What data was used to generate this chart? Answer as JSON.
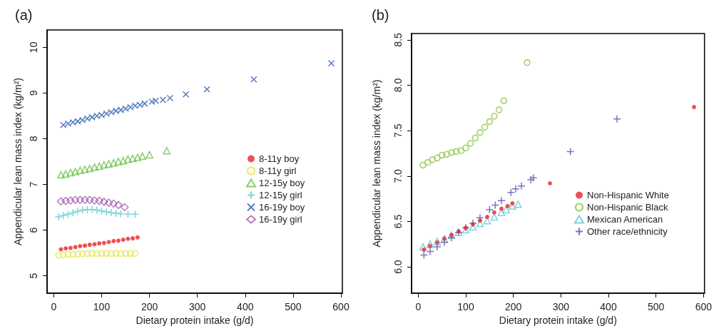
{
  "chart_data": [
    {
      "type": "scatter",
      "title": "(a)",
      "xlabel": "Dietary protein intake (g/d)",
      "ylabel": "Appendicular lean mass index (kg/m²)",
      "xlim": [
        -14,
        603
      ],
      "ylim": [
        4.62,
        10.38
      ],
      "xticks": [
        0,
        100,
        200,
        300,
        400,
        500,
        600
      ],
      "yticks": [
        5,
        6,
        7,
        8,
        9,
        10
      ],
      "grid": false,
      "legend": "bottom right",
      "series": [
        {
          "name": "8-11y boy",
          "color": "#e8262a",
          "marker": "circle",
          "x": [
            15,
            25,
            35,
            45,
            55,
            65,
            75,
            85,
            95,
            105,
            115,
            125,
            135,
            145,
            155,
            165,
            175
          ],
          "values": [
            5.58,
            5.6,
            5.61,
            5.63,
            5.65,
            5.66,
            5.68,
            5.69,
            5.71,
            5.72,
            5.74,
            5.76,
            5.77,
            5.79,
            5.81,
            5.82,
            5.84
          ]
        },
        {
          "name": "8-11y girl",
          "color": "#e6e640",
          "marker": "circle-open",
          "x": [
            10,
            20,
            30,
            40,
            50,
            60,
            70,
            80,
            90,
            100,
            110,
            120,
            130,
            140,
            150,
            160,
            170
          ],
          "values": [
            5.45,
            5.46,
            5.47,
            5.47,
            5.48,
            5.48,
            5.49,
            5.49,
            5.49,
            5.49,
            5.49,
            5.49,
            5.49,
            5.49,
            5.49,
            5.49,
            5.49
          ]
        },
        {
          "name": "12-15y boy",
          "color": "#6cc04a",
          "marker": "triangle",
          "x": [
            15,
            25,
            35,
            45,
            55,
            65,
            75,
            85,
            95,
            105,
            115,
            125,
            135,
            145,
            155,
            165,
            175,
            185,
            200,
            236
          ],
          "values": [
            7.21,
            7.23,
            7.26,
            7.28,
            7.31,
            7.33,
            7.35,
            7.38,
            7.4,
            7.43,
            7.45,
            7.47,
            7.5,
            7.52,
            7.55,
            7.57,
            7.59,
            7.62,
            7.65,
            7.74
          ]
        },
        {
          "name": "12-15y girl",
          "color": "#5fc8d0",
          "marker": "plus",
          "x": [
            10,
            20,
            30,
            40,
            50,
            60,
            70,
            80,
            90,
            100,
            110,
            120,
            130,
            140,
            155,
            170
          ],
          "values": [
            6.29,
            6.32,
            6.35,
            6.38,
            6.41,
            6.44,
            6.45,
            6.45,
            6.44,
            6.42,
            6.4,
            6.38,
            6.37,
            6.36,
            6.35,
            6.35
          ]
        },
        {
          "name": "16-19y boy",
          "color": "#2a5db0",
          "marker": "x",
          "x": [
            20,
            30,
            40,
            50,
            60,
            70,
            80,
            90,
            100,
            110,
            120,
            130,
            140,
            150,
            160,
            170,
            180,
            190,
            205,
            213,
            228,
            243,
            276,
            320,
            418,
            580
          ],
          "values": [
            8.3,
            8.33,
            8.36,
            8.38,
            8.41,
            8.44,
            8.47,
            8.5,
            8.52,
            8.55,
            8.58,
            8.61,
            8.63,
            8.66,
            8.69,
            8.72,
            8.74,
            8.77,
            8.81,
            8.83,
            8.85,
            8.89,
            8.97,
            9.08,
            9.3,
            9.65
          ]
        },
        {
          "name": "16-19y girl",
          "color": "#a45cb0",
          "marker": "diamond",
          "x": [
            15,
            25,
            35,
            45,
            55,
            65,
            75,
            85,
            95,
            105,
            115,
            125,
            135,
            148
          ],
          "values": [
            6.63,
            6.64,
            6.65,
            6.66,
            6.66,
            6.66,
            6.66,
            6.65,
            6.64,
            6.62,
            6.6,
            6.58,
            6.55,
            6.5
          ]
        }
      ]
    },
    {
      "type": "scatter",
      "title": "(b)",
      "xlabel": "Dietary protein intake (g/d)",
      "ylabel": "Appendicular lean mass index (kg/m²)",
      "xlim": [
        -14,
        602
      ],
      "ylim": [
        5.71,
        8.57
      ],
      "xticks": [
        0,
        100,
        200,
        300,
        400,
        500,
        600
      ],
      "yticks": [
        {
          "value": 6,
          "label": "6.0"
        },
        6.5,
        {
          "value": 7,
          "label": "7.0"
        },
        7.5,
        {
          "value": 8,
          "label": "8.0"
        },
        8.5
      ],
      "grid": false,
      "legend": "bottom right",
      "series": [
        {
          "name": "Non-Hispanic White",
          "color": "#e8262a",
          "marker": "circle",
          "x": [
            12,
            25,
            40,
            55,
            70,
            85,
            100,
            115,
            130,
            145,
            160,
            175,
            188,
            198,
            277,
            580
          ],
          "values": [
            6.19,
            6.23,
            6.27,
            6.31,
            6.35,
            6.39,
            6.43,
            6.47,
            6.51,
            6.55,
            6.6,
            6.64,
            6.67,
            6.7,
            6.92,
            7.76
          ]
        },
        {
          "name": "Non-Hispanic Black",
          "color": "#88c440",
          "marker": "circle-open",
          "x": [
            10,
            20,
            30,
            40,
            50,
            60,
            70,
            80,
            90,
            100,
            110,
            120,
            130,
            140,
            150,
            160,
            170,
            180,
            229
          ],
          "values": [
            7.12,
            7.15,
            7.18,
            7.2,
            7.23,
            7.24,
            7.26,
            7.27,
            7.28,
            7.31,
            7.36,
            7.42,
            7.48,
            7.54,
            7.6,
            7.66,
            7.73,
            7.83,
            8.25
          ]
        },
        {
          "name": "Mexican American",
          "color": "#5fc8d0",
          "marker": "triangle",
          "x": [
            10,
            25,
            40,
            55,
            70,
            85,
            100,
            115,
            130,
            145,
            160,
            175,
            185,
            198,
            210
          ],
          "values": [
            6.22,
            6.25,
            6.28,
            6.31,
            6.35,
            6.38,
            6.41,
            6.44,
            6.48,
            6.51,
            6.55,
            6.6,
            6.63,
            6.67,
            6.69
          ]
        },
        {
          "name": "Other race/ethnicity",
          "color": "#5e4fb0",
          "marker": "plus",
          "x": [
            12,
            25,
            40,
            55,
            70,
            85,
            100,
            115,
            130,
            150,
            162,
            175,
            195,
            205,
            217,
            237,
            242,
            320,
            418
          ],
          "values": [
            6.13,
            6.17,
            6.22,
            6.27,
            6.32,
            6.38,
            6.43,
            6.48,
            6.54,
            6.63,
            6.68,
            6.73,
            6.82,
            6.86,
            6.89,
            6.96,
            6.98,
            7.27,
            7.63
          ]
        }
      ]
    }
  ]
}
